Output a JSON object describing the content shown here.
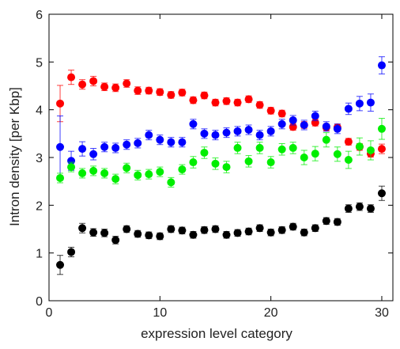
{
  "chart_data": {
    "type": "scatter",
    "title": "",
    "xlabel": "expression level category",
    "ylabel": "Intron density [per Kbp]",
    "xlim": [
      0,
      31
    ],
    "ylim": [
      0,
      6
    ],
    "xticks": [
      "0",
      "10",
      "20",
      "30"
    ],
    "yticks": [
      "0",
      "1",
      "2",
      "3",
      "4",
      "5",
      "6"
    ],
    "grid": false,
    "legend": "none",
    "x": [
      1,
      2,
      3,
      4,
      5,
      6,
      7,
      8,
      9,
      10,
      11,
      12,
      13,
      14,
      15,
      16,
      17,
      18,
      19,
      20,
      21,
      22,
      23,
      24,
      25,
      26,
      27,
      28,
      29,
      30
    ],
    "series": [
      {
        "color": "#ff0000",
        "values": [
          4.13,
          4.68,
          4.53,
          4.6,
          4.48,
          4.46,
          4.55,
          4.4,
          4.4,
          4.37,
          4.31,
          4.36,
          4.2,
          4.3,
          4.15,
          4.18,
          4.15,
          4.22,
          4.1,
          3.98,
          3.92,
          3.64,
          3.68,
          3.73,
          3.63,
          3.63,
          3.33,
          3.22,
          3.08,
          3.18
        ],
        "errors": [
          0.38,
          0.15,
          0.1,
          0.1,
          0.08,
          0.08,
          0.08,
          0.08,
          0.07,
          0.07,
          0.07,
          0.07,
          0.07,
          0.07,
          0.07,
          0.07,
          0.07,
          0.07,
          0.07,
          0.07,
          0.07,
          0.07,
          0.07,
          0.07,
          0.07,
          0.07,
          0.07,
          0.07,
          0.07,
          0.1
        ]
      },
      {
        "color": "#0000ff",
        "values": [
          3.22,
          2.93,
          3.18,
          3.07,
          3.22,
          3.2,
          3.27,
          3.3,
          3.47,
          3.37,
          3.32,
          3.32,
          3.7,
          3.5,
          3.47,
          3.52,
          3.55,
          3.58,
          3.47,
          3.55,
          3.7,
          3.78,
          3.68,
          3.87,
          3.65,
          3.6,
          4.02,
          4.13,
          4.15,
          4.93
        ],
        "errors": [
          0.65,
          0.2,
          0.15,
          0.12,
          0.1,
          0.1,
          0.1,
          0.1,
          0.1,
          0.1,
          0.1,
          0.1,
          0.1,
          0.1,
          0.1,
          0.1,
          0.1,
          0.1,
          0.1,
          0.1,
          0.1,
          0.1,
          0.1,
          0.1,
          0.1,
          0.1,
          0.12,
          0.15,
          0.18,
          0.18
        ]
      },
      {
        "color": "#00ee00",
        "values": [
          2.57,
          2.8,
          2.67,
          2.72,
          2.67,
          2.55,
          2.78,
          2.63,
          2.65,
          2.7,
          2.48,
          2.75,
          2.9,
          3.1,
          2.87,
          2.8,
          3.2,
          2.92,
          3.2,
          2.9,
          3.17,
          3.2,
          3.0,
          3.08,
          3.37,
          3.07,
          2.95,
          3.23,
          3.15,
          3.6
        ],
        "errors": [
          0.1,
          0.1,
          0.1,
          0.1,
          0.1,
          0.1,
          0.1,
          0.1,
          0.1,
          0.1,
          0.1,
          0.1,
          0.12,
          0.12,
          0.12,
          0.12,
          0.12,
          0.12,
          0.12,
          0.12,
          0.12,
          0.12,
          0.15,
          0.15,
          0.15,
          0.15,
          0.18,
          0.18,
          0.2,
          0.22
        ]
      },
      {
        "color": "#000000",
        "values": [
          0.75,
          1.02,
          1.52,
          1.43,
          1.42,
          1.27,
          1.5,
          1.4,
          1.37,
          1.35,
          1.5,
          1.47,
          1.38,
          1.48,
          1.5,
          1.38,
          1.42,
          1.45,
          1.52,
          1.43,
          1.48,
          1.55,
          1.43,
          1.52,
          1.67,
          1.65,
          1.93,
          1.97,
          1.93,
          2.25
        ],
        "errors": [
          0.2,
          0.1,
          0.1,
          0.08,
          0.08,
          0.08,
          0.07,
          0.07,
          0.07,
          0.07,
          0.07,
          0.07,
          0.07,
          0.07,
          0.07,
          0.07,
          0.07,
          0.07,
          0.07,
          0.07,
          0.07,
          0.07,
          0.07,
          0.07,
          0.07,
          0.07,
          0.08,
          0.08,
          0.08,
          0.15
        ]
      }
    ]
  }
}
